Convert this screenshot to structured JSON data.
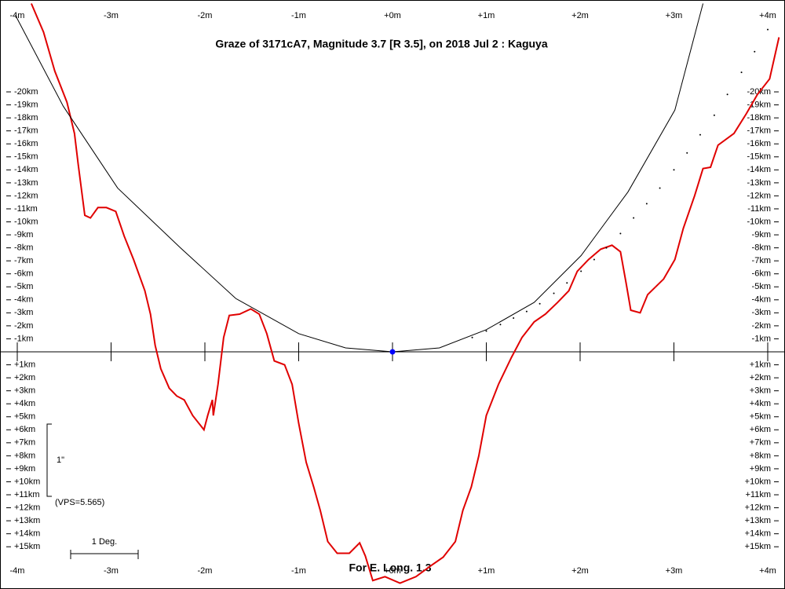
{
  "chart_data": {
    "type": "line",
    "title": "Graze of  3171cA7,  Magnitude 3.7 [R 3.5],  on 2018 Jul  2  :  Kaguya",
    "annotations": [
      "1\"",
      "(VPS=5.565)",
      "1 Deg.",
      "For E. Long. 1.3"
    ],
    "xlim": [
      -4.184,
      4.184
    ],
    "ylim": [
      -27.07,
      18.25
    ],
    "xticks": [
      {
        "value": -4,
        "label": "-4m"
      },
      {
        "value": -3,
        "label": "-3m"
      },
      {
        "value": -2,
        "label": "-2m"
      },
      {
        "value": -1,
        "label": "-1m"
      },
      {
        "value": 0,
        "label": "+0m"
      },
      {
        "value": 1,
        "label": "+1m"
      },
      {
        "value": 2,
        "label": "+2m"
      },
      {
        "value": 3,
        "label": "+3m"
      },
      {
        "value": 4,
        "label": "+4m"
      }
    ],
    "yticks": [
      {
        "value": -20,
        "label": "-20km"
      },
      {
        "value": -19,
        "label": "-19km"
      },
      {
        "value": -18,
        "label": "-18km"
      },
      {
        "value": -17,
        "label": "-17km"
      },
      {
        "value": -16,
        "label": "-16km"
      },
      {
        "value": -15,
        "label": "-15km"
      },
      {
        "value": -14,
        "label": "-14km"
      },
      {
        "value": -13,
        "label": "-13km"
      },
      {
        "value": -12,
        "label": "-12km"
      },
      {
        "value": -11,
        "label": "-11km"
      },
      {
        "value": -10,
        "label": "-10km"
      },
      {
        "value": -9,
        "label": "-9km"
      },
      {
        "value": -8,
        "label": "-8km"
      },
      {
        "value": -7,
        "label": "-7km"
      },
      {
        "value": -6,
        "label": "-6km"
      },
      {
        "value": -5,
        "label": "-5km"
      },
      {
        "value": -4,
        "label": "-4km"
      },
      {
        "value": -3,
        "label": "-3km"
      },
      {
        "value": -2,
        "label": "-2km"
      },
      {
        "value": -1,
        "label": "-1km"
      },
      {
        "value": 1,
        "label": "+1km"
      },
      {
        "value": 2,
        "label": "+2km"
      },
      {
        "value": 3,
        "label": "+3km"
      },
      {
        "value": 4,
        "label": "+4km"
      },
      {
        "value": 5,
        "label": "+5km"
      },
      {
        "value": 6,
        "label": "+6km"
      },
      {
        "value": 7,
        "label": "+7km"
      },
      {
        "value": 8,
        "label": "+8km"
      },
      {
        "value": 9,
        "label": "+9km"
      },
      {
        "value": 10,
        "label": "+10km"
      },
      {
        "value": 11,
        "label": "+11km"
      },
      {
        "value": 12,
        "label": "+12km"
      },
      {
        "value": 13,
        "label": "+13km"
      },
      {
        "value": 14,
        "label": "+14km"
      },
      {
        "value": 15,
        "label": "+15km"
      }
    ],
    "series": [
      {
        "style": "line",
        "color": "#e00000",
        "x": [
          -3.85,
          -3.72,
          -3.6,
          -3.47,
          -3.39,
          -3.35,
          -3.28,
          -3.22,
          -3.14,
          -3.05,
          -2.95,
          -2.86,
          -2.76,
          -2.64,
          -2.58,
          -2.53,
          -2.47,
          -2.38,
          -2.3,
          -2.22,
          -2.13,
          -2.01,
          -1.97,
          -1.92,
          -1.91,
          -1.86,
          -1.8,
          -1.74,
          -1.63,
          -1.51,
          -1.42,
          -1.34,
          -1.26,
          -1.15,
          -1.07,
          -1.0,
          -0.92,
          -0.84,
          -0.77,
          -0.69,
          -0.59,
          -0.46,
          -0.35,
          -0.29,
          -0.21,
          -0.08,
          0.08,
          0.25,
          0.42,
          0.54,
          0.67,
          0.75,
          0.84,
          0.92,
          1.0,
          1.13,
          1.27,
          1.38,
          1.51,
          1.63,
          1.76,
          1.88,
          1.97,
          2.09,
          2.22,
          2.34,
          2.43,
          2.49,
          2.54,
          2.64,
          2.72,
          2.89,
          3.01,
          3.1,
          3.22,
          3.31,
          3.39,
          3.47,
          3.64,
          3.77,
          3.89,
          4.02,
          4.12
        ],
        "values": [
          -26.8,
          -24.6,
          -21.6,
          -19.2,
          -16.8,
          -14.4,
          -10.5,
          -10.3,
          -11.1,
          -11.1,
          -10.8,
          -8.9,
          -7.1,
          -4.7,
          -2.9,
          -0.5,
          1.3,
          2.8,
          3.4,
          3.7,
          4.9,
          6.0,
          4.9,
          3.7,
          4.9,
          2.5,
          -1.1,
          -2.8,
          -2.9,
          -3.3,
          -2.9,
          -1.4,
          0.7,
          1.0,
          2.5,
          5.5,
          8.5,
          10.4,
          12.2,
          14.6,
          15.5,
          15.5,
          14.7,
          15.7,
          17.6,
          17.3,
          17.8,
          17.3,
          16.4,
          15.8,
          14.6,
          12.2,
          10.4,
          8.0,
          4.9,
          2.5,
          0.4,
          -1.1,
          -2.3,
          -2.9,
          -3.8,
          -4.7,
          -6.2,
          -7.1,
          -7.9,
          -8.2,
          -7.7,
          -5.3,
          -3.2,
          -3.0,
          -4.4,
          -5.6,
          -7.1,
          -9.5,
          -12.0,
          -14.1,
          -14.2,
          -15.9,
          -16.8,
          -18.3,
          -19.8,
          -21.0,
          -24.2
        ]
      },
      {
        "style": "line",
        "color": "#000000",
        "x": [
          -4.02,
          -3.51,
          -2.93,
          -2.26,
          -1.67,
          -1.0,
          -0.5,
          0,
          0.5,
          1.0,
          1.51,
          2.01,
          2.51,
          3.01,
          3.31
        ],
        "values": [
          -25.9,
          -18.9,
          -12.6,
          -8.0,
          -4.1,
          -1.4,
          -0.3,
          0,
          -0.3,
          -1.7,
          -3.8,
          -7.4,
          -12.3,
          -18.6,
          -26.8
        ]
      },
      {
        "style": "dots",
        "color": "#000000",
        "x": [
          0.85,
          1.0,
          1.15,
          1.29,
          1.43,
          1.57,
          1.72,
          1.86,
          2.01,
          2.15,
          2.28,
          2.43,
          2.57,
          2.71,
          2.85,
          3.0,
          3.14,
          3.28,
          3.43,
          3.57,
          3.72,
          3.86,
          4.0
        ],
        "values": [
          -1.1,
          -1.6,
          -2.1,
          -2.6,
          -3.1,
          -3.7,
          -4.5,
          -5.3,
          -6.2,
          -7.1,
          -8.0,
          -9.1,
          -10.3,
          -11.4,
          -12.6,
          -14.0,
          -15.3,
          -16.7,
          -18.2,
          -19.8,
          -21.5,
          -23.1,
          -24.8
        ]
      },
      {
        "style": "point",
        "color": "#0000ff",
        "x": [
          0
        ],
        "values": [
          0
        ]
      }
    ]
  }
}
